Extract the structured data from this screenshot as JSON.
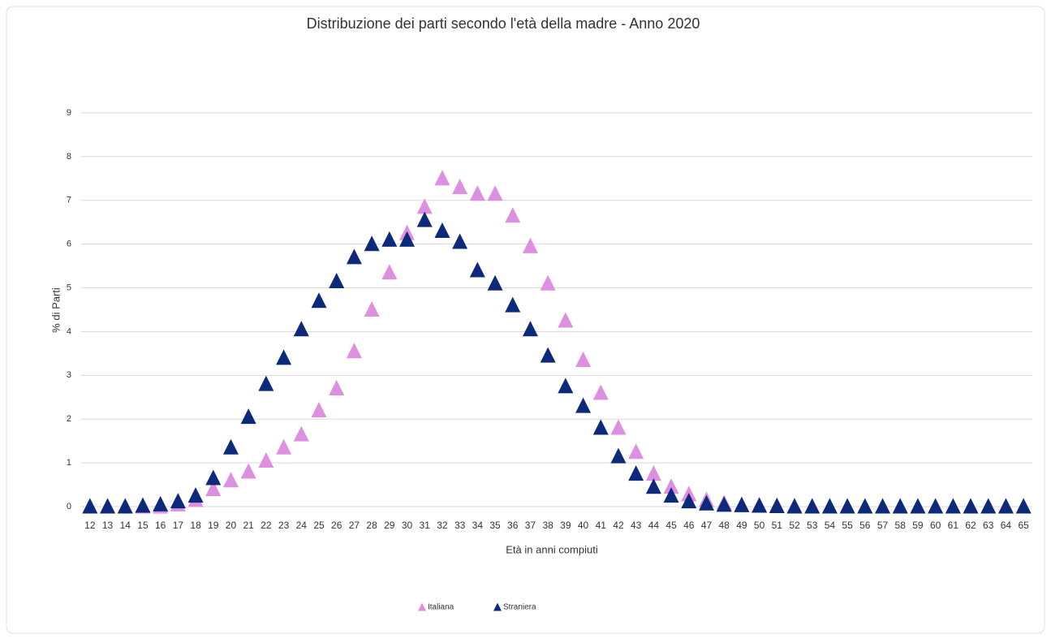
{
  "chart_data": {
    "type": "scatter",
    "title": "Distribuzione dei parti secondo l'età della madre - Anno 2020",
    "x_label": "Età in anni compiuti",
    "y_label": "% di Parti",
    "categories": [
      12,
      13,
      14,
      15,
      16,
      17,
      18,
      19,
      20,
      21,
      22,
      23,
      24,
      25,
      26,
      27,
      28,
      29,
      30,
      31,
      32,
      33,
      34,
      35,
      36,
      37,
      38,
      39,
      40,
      41,
      42,
      43,
      44,
      45,
      46,
      47,
      48,
      49,
      50,
      51,
      52,
      53,
      54,
      55,
      56,
      57,
      58,
      59,
      60,
      61,
      62,
      63,
      64,
      65
    ],
    "series": [
      {
        "name": "Italiana",
        "color": "#dd8fe0",
        "values": [
          0,
          0,
          0,
          0,
          0,
          0.05,
          0.15,
          0.4,
          0.6,
          0.8,
          1.05,
          1.35,
          1.65,
          2.2,
          2.7,
          3.55,
          4.5,
          5.35,
          6.25,
          6.85,
          7.5,
          7.3,
          7.15,
          7.15,
          6.65,
          5.95,
          5.1,
          4.25,
          3.35,
          2.6,
          1.8,
          1.25,
          0.75,
          0.45,
          0.28,
          0.15,
          0.08,
          0.04,
          0.03,
          0.02,
          0.01,
          0,
          0,
          0,
          0,
          0,
          0,
          0,
          0,
          0,
          0,
          0,
          0,
          0
        ]
      },
      {
        "name": "Straniera",
        "color": "#0d2a7a",
        "values": [
          0,
          0,
          0,
          0.02,
          0.05,
          0.12,
          0.25,
          0.65,
          1.35,
          2.05,
          2.8,
          3.4,
          4.05,
          4.7,
          5.15,
          5.7,
          6.0,
          6.1,
          6.1,
          6.55,
          6.3,
          6.05,
          5.4,
          5.1,
          4.6,
          4.05,
          3.45,
          2.75,
          2.3,
          1.8,
          1.15,
          0.75,
          0.45,
          0.25,
          0.12,
          0.07,
          0.04,
          0.03,
          0.02,
          0.01,
          0,
          0,
          0,
          0,
          0,
          0,
          0,
          0,
          0,
          0,
          0,
          0,
          0,
          0
        ]
      }
    ],
    "ylim": [
      0,
      9
    ],
    "yticks": [
      0,
      1,
      2,
      3,
      4,
      5,
      6,
      7,
      8,
      9
    ],
    "grid": true,
    "legend": "bottom"
  }
}
